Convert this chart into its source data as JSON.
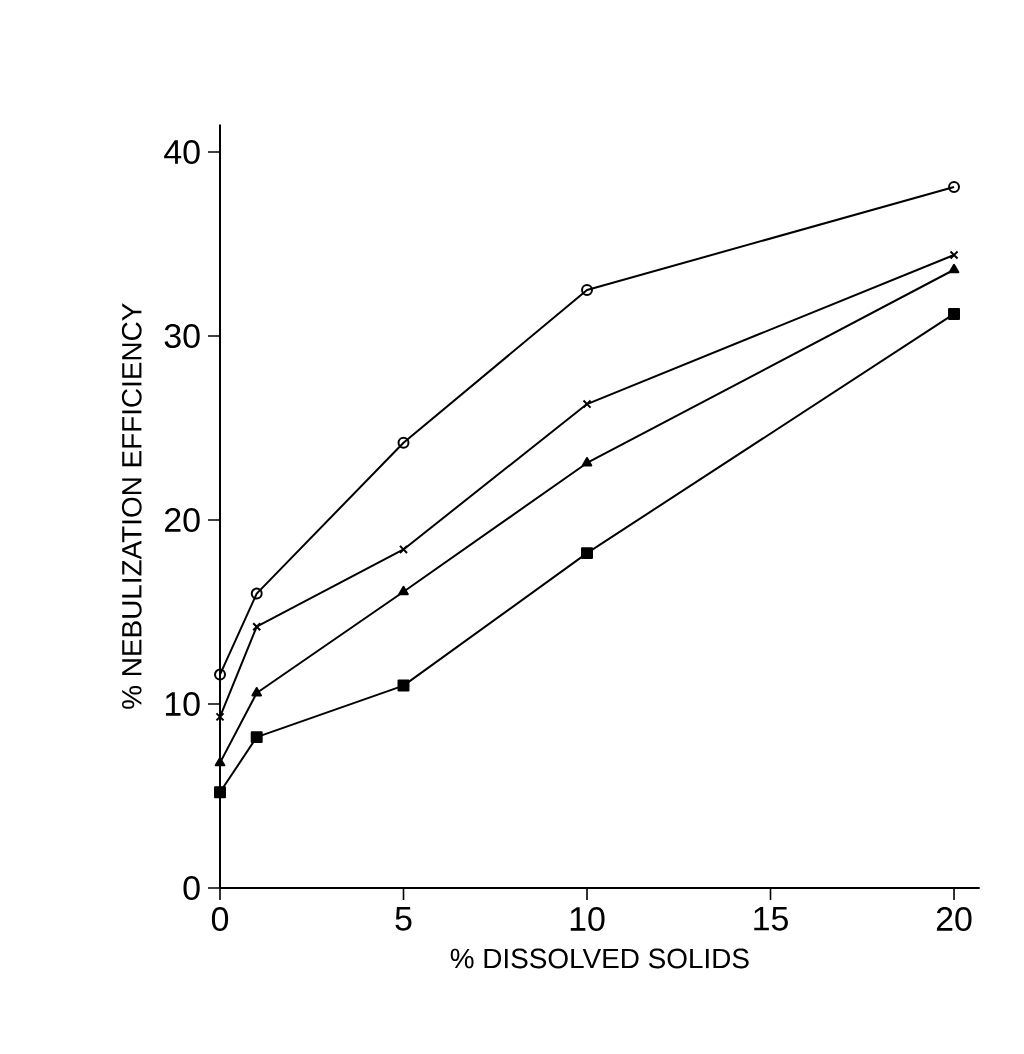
{
  "chart_data": {
    "type": "line",
    "xlabel": "% DISSOLVED SOLIDS",
    "ylabel": "% NEBULIZATION EFFICIENCY",
    "xlim": [
      0,
      20.7
    ],
    "ylim": [
      0,
      41.5
    ],
    "xticks": [
      0,
      5,
      10,
      15,
      20
    ],
    "yticks": [
      0,
      10,
      20,
      30,
      40
    ],
    "x": [
      0,
      1,
      5,
      10,
      20
    ],
    "line_style": "solid",
    "series": [
      {
        "color": "#000000",
        "marker": "circle",
        "values": [
          11.6,
          16.0,
          24.2,
          32.5,
          38.1
        ]
      },
      {
        "color": "#000000",
        "marker": "cross",
        "values": [
          9.3,
          14.2,
          18.4,
          26.3,
          34.4
        ]
      },
      {
        "color": "#000000",
        "marker": "triangle",
        "values": [
          6.8,
          10.6,
          16.1,
          23.1,
          33.6
        ]
      },
      {
        "color": "#000000",
        "marker": "square",
        "values": [
          5.2,
          8.2,
          11.0,
          18.2,
          31.2
        ]
      }
    ]
  }
}
